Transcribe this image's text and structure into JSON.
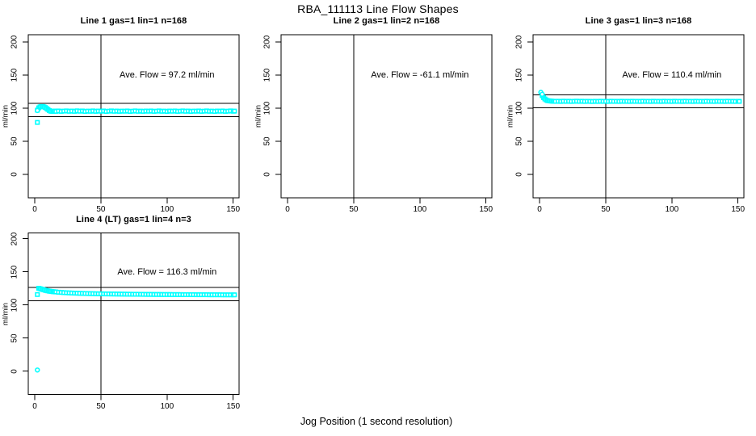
{
  "figure": {
    "title": "RBA_111113  Line Flow Shapes",
    "xlabel": "Jog Position (1 second resolution)",
    "background": "#ffffff",
    "point_color": "#00ffff",
    "line_color": "#000000"
  },
  "chart_data": [
    {
      "type": "scatter",
      "title": "Line 1 gas=1 lin=1 n=168",
      "annotation": "Ave. Flow =  97.2  ml/min",
      "annotation_at": {
        "x": 100,
        "y": 150
      },
      "ylabel": "ml/min",
      "ave_flow": 97.2,
      "x_ticks": [
        0,
        50,
        100,
        150
      ],
      "y_ticks": [
        0,
        50,
        100,
        150,
        200
      ],
      "xlim": [
        -5,
        154
      ],
      "ylim": [
        -35,
        211
      ],
      "vline_x": 50,
      "hlines": [
        107.2,
        87.2
      ],
      "circles": [
        [
          2,
          96.5
        ]
      ],
      "squares": [
        [
          2,
          78.5
        ],
        [
          2,
          97
        ],
        [
          3,
          100.5
        ],
        [
          4,
          102
        ],
        [
          5,
          102.5
        ],
        [
          6,
          102.5
        ],
        [
          7,
          102
        ],
        [
          8,
          101
        ],
        [
          9,
          99.5
        ],
        [
          10,
          98
        ],
        [
          11,
          96.5
        ],
        [
          12,
          95.5
        ],
        [
          13,
          95.2
        ],
        [
          14,
          95.4
        ],
        [
          15,
          95.7
        ],
        [
          16,
          95.2
        ],
        [
          18,
          95.8
        ],
        [
          20,
          95.2
        ],
        [
          22,
          95.6
        ],
        [
          24,
          95.9
        ],
        [
          26,
          95.3
        ],
        [
          28,
          95.7
        ],
        [
          30,
          95.2
        ],
        [
          32,
          96
        ],
        [
          34,
          95.4
        ],
        [
          36,
          95.8
        ],
        [
          38,
          95.1
        ],
        [
          40,
          95.6
        ],
        [
          42,
          95.3
        ],
        [
          44,
          95.9
        ],
        [
          46,
          95.2
        ],
        [
          48,
          95.7
        ],
        [
          50,
          95.4
        ],
        [
          52,
          95.8
        ],
        [
          54,
          95.1
        ],
        [
          56,
          95.5
        ],
        [
          58,
          95.9
        ],
        [
          60,
          95.3
        ],
        [
          62,
          95.7
        ],
        [
          64,
          95.2
        ],
        [
          66,
          95.6
        ],
        [
          68,
          95.4
        ],
        [
          70,
          95.8
        ],
        [
          72,
          95.1
        ],
        [
          74,
          95.5
        ],
        [
          76,
          95.9
        ],
        [
          78,
          95.3
        ],
        [
          80,
          95.6
        ],
        [
          82,
          95.2
        ],
        [
          84,
          95.7
        ],
        [
          86,
          95.4
        ],
        [
          88,
          95.8
        ],
        [
          90,
          95.2
        ],
        [
          92,
          95.5
        ],
        [
          94,
          95.9
        ],
        [
          96,
          95.3
        ],
        [
          98,
          95.6
        ],
        [
          100,
          95.1
        ],
        [
          102,
          95.7
        ],
        [
          104,
          95.4
        ],
        [
          106,
          95.8
        ],
        [
          108,
          95.2
        ],
        [
          110,
          95.5
        ],
        [
          112,
          95.9
        ],
        [
          114,
          95.3
        ],
        [
          116,
          95.7
        ],
        [
          118,
          95.1
        ],
        [
          120,
          95.6
        ],
        [
          122,
          95.4
        ],
        [
          124,
          95.8
        ],
        [
          126,
          95.2
        ],
        [
          128,
          95.5
        ],
        [
          130,
          95.9
        ],
        [
          132,
          95.3
        ],
        [
          134,
          95.6
        ],
        [
          136,
          95.1
        ],
        [
          138,
          95.7
        ],
        [
          140,
          95.4
        ],
        [
          142,
          95.8
        ],
        [
          144,
          95.2
        ],
        [
          146,
          95.5
        ],
        [
          148,
          95.9
        ],
        [
          150,
          95.4
        ],
        [
          151,
          95.6
        ]
      ]
    },
    {
      "type": "scatter",
      "title": "Line 2 gas=1 lin=2 n=168",
      "annotation": "Ave. Flow =  -61.1  ml/min",
      "annotation_at": {
        "x": 100,
        "y": 150
      },
      "ylabel": "ml/min",
      "ave_flow": -61.1,
      "x_ticks": [
        0,
        50,
        100,
        150
      ],
      "y_ticks": [
        0,
        50,
        100,
        150,
        200
      ],
      "xlim": [
        -5,
        154
      ],
      "ylim": [
        -35,
        211
      ],
      "vline_x": 50,
      "hlines": [],
      "circles": [],
      "squares": []
    },
    {
      "type": "scatter",
      "title": "Line 3 gas=1 lin=3 n=168",
      "annotation": "Ave. Flow =  110.4  ml/min",
      "annotation_at": {
        "x": 100,
        "y": 150
      },
      "ylabel": "ml/min",
      "ave_flow": 110.4,
      "x_ticks": [
        0,
        50,
        100,
        150
      ],
      "y_ticks": [
        0,
        50,
        100,
        150,
        200
      ],
      "xlim": [
        -5,
        154
      ],
      "ylim": [
        -35,
        211
      ],
      "vline_x": 50,
      "hlines": [
        120.4,
        100.4
      ],
      "circles": [
        [
          1,
          124
        ],
        [
          2,
          121
        ]
      ],
      "squares": [
        [
          2,
          119
        ],
        [
          3,
          116
        ],
        [
          4,
          114
        ],
        [
          5,
          112.5
        ],
        [
          6,
          111.5
        ],
        [
          7,
          111.2
        ],
        [
          8,
          110.9
        ],
        [
          9,
          110.7
        ],
        [
          10,
          110.5
        ],
        [
          11,
          110.4
        ],
        [
          12,
          110.3
        ],
        [
          14,
          110.5
        ],
        [
          16,
          110.2
        ],
        [
          18,
          110.6
        ],
        [
          20,
          110.3
        ],
        [
          22,
          110.5
        ],
        [
          24,
          110.2
        ],
        [
          26,
          110.4
        ],
        [
          28,
          110.6
        ],
        [
          30,
          110.3
        ],
        [
          32,
          110.5
        ],
        [
          34,
          110.2
        ],
        [
          36,
          110.4
        ],
        [
          38,
          110.3
        ],
        [
          40,
          110.1
        ],
        [
          42,
          110.4
        ],
        [
          44,
          110.2
        ],
        [
          46,
          110.5
        ],
        [
          48,
          110.3
        ],
        [
          50,
          110.4
        ],
        [
          52,
          110.2
        ],
        [
          54,
          110.5
        ],
        [
          56,
          110.3
        ],
        [
          58,
          110.4
        ],
        [
          60,
          110.2
        ],
        [
          62,
          110.5
        ],
        [
          64,
          110.3
        ],
        [
          66,
          110.4
        ],
        [
          68,
          110.2
        ],
        [
          70,
          110.5
        ],
        [
          72,
          110.3
        ],
        [
          74,
          110.4
        ],
        [
          76,
          110.2
        ],
        [
          78,
          110.5
        ],
        [
          80,
          110.3
        ],
        [
          82,
          110.4
        ],
        [
          84,
          110.2
        ],
        [
          86,
          110.5
        ],
        [
          88,
          110.3
        ],
        [
          90,
          110.4
        ],
        [
          92,
          110.2
        ],
        [
          94,
          110.5
        ],
        [
          96,
          110.3
        ],
        [
          98,
          110.4
        ],
        [
          100,
          110.2
        ],
        [
          102,
          110.5
        ],
        [
          104,
          110.3
        ],
        [
          106,
          110.4
        ],
        [
          108,
          110.2
        ],
        [
          110,
          110.5
        ],
        [
          112,
          110.3
        ],
        [
          114,
          110.4
        ],
        [
          116,
          110.2
        ],
        [
          118,
          110.5
        ],
        [
          120,
          110.3
        ],
        [
          122,
          110.4
        ],
        [
          124,
          110.2
        ],
        [
          126,
          110.5
        ],
        [
          128,
          110.3
        ],
        [
          130,
          110.4
        ],
        [
          132,
          110.2
        ],
        [
          134,
          110.5
        ],
        [
          136,
          110.3
        ],
        [
          138,
          110.4
        ],
        [
          140,
          110.2
        ],
        [
          142,
          110.5
        ],
        [
          144,
          110.3
        ],
        [
          146,
          110.4
        ],
        [
          148,
          110.2
        ],
        [
          150,
          110.4
        ],
        [
          151,
          110.3
        ]
      ]
    },
    {
      "type": "scatter",
      "title": "Line 4 (LT) gas=1 lin=4 n=3",
      "annotation": "Ave. Flow =  116.3  ml/min",
      "annotation_at": {
        "x": 100,
        "y": 150
      },
      "ylabel": "ml/min",
      "ave_flow": 116.3,
      "x_ticks": [
        0,
        50,
        100,
        150
      ],
      "y_ticks": [
        0,
        50,
        100,
        150,
        200
      ],
      "xlim": [
        -5,
        154
      ],
      "ylim": [
        -35,
        211
      ],
      "vline_x": 50,
      "hlines": [
        126.3,
        106.3
      ],
      "circles": [
        [
          2,
          1.5
        ]
      ],
      "squares": [
        [
          2,
          115.5
        ],
        [
          3,
          125
        ],
        [
          4,
          124.4
        ],
        [
          5,
          123.8
        ],
        [
          6,
          123.1
        ],
        [
          7,
          122.5
        ],
        [
          8,
          121.9
        ],
        [
          9,
          121.4
        ],
        [
          10,
          121
        ],
        [
          11,
          120.6
        ],
        [
          12,
          120.3
        ],
        [
          13,
          120
        ],
        [
          14,
          119.8
        ],
        [
          15,
          119.6
        ],
        [
          16,
          119.4
        ],
        [
          18,
          119
        ],
        [
          20,
          118.7
        ],
        [
          22,
          118.4
        ],
        [
          24,
          118.2
        ],
        [
          26,
          118
        ],
        [
          28,
          117.8
        ],
        [
          30,
          117.6
        ],
        [
          32,
          117.5
        ],
        [
          34,
          117.3
        ],
        [
          36,
          117.2
        ],
        [
          38,
          117.1
        ],
        [
          40,
          117
        ],
        [
          42,
          116.9
        ],
        [
          44,
          116.8
        ],
        [
          46,
          116.7
        ],
        [
          48,
          116.6
        ],
        [
          50,
          116.6
        ],
        [
          52,
          116.5
        ],
        [
          54,
          116.4
        ],
        [
          56,
          116.4
        ],
        [
          58,
          116.3
        ],
        [
          60,
          116.3
        ],
        [
          62,
          116.2
        ],
        [
          64,
          116.2
        ],
        [
          66,
          116.1
        ],
        [
          68,
          116.1
        ],
        [
          70,
          116
        ],
        [
          72,
          116
        ],
        [
          74,
          115.9
        ],
        [
          76,
          115.9
        ],
        [
          78,
          115.9
        ],
        [
          80,
          115.8
        ],
        [
          82,
          115.8
        ],
        [
          84,
          115.7
        ],
        [
          86,
          115.7
        ],
        [
          88,
          115.7
        ],
        [
          90,
          115.6
        ],
        [
          92,
          115.6
        ],
        [
          94,
          115.6
        ],
        [
          96,
          115.5
        ],
        [
          98,
          115.5
        ],
        [
          100,
          115.5
        ],
        [
          102,
          115.5
        ],
        [
          104,
          115.4
        ],
        [
          106,
          115.4
        ],
        [
          108,
          115.4
        ],
        [
          110,
          115.4
        ],
        [
          112,
          115.3
        ],
        [
          114,
          115.3
        ],
        [
          116,
          115.3
        ],
        [
          118,
          115.3
        ],
        [
          120,
          115.3
        ],
        [
          122,
          115.2
        ],
        [
          124,
          115.2
        ],
        [
          126,
          115.2
        ],
        [
          128,
          115.2
        ],
        [
          130,
          115.2
        ],
        [
          132,
          115.1
        ],
        [
          134,
          115.1
        ],
        [
          136,
          115.1
        ],
        [
          138,
          115.1
        ],
        [
          140,
          115.1
        ],
        [
          142,
          115
        ],
        [
          144,
          115
        ],
        [
          146,
          115
        ],
        [
          148,
          115
        ],
        [
          150,
          115
        ],
        [
          151,
          115
        ]
      ]
    }
  ]
}
